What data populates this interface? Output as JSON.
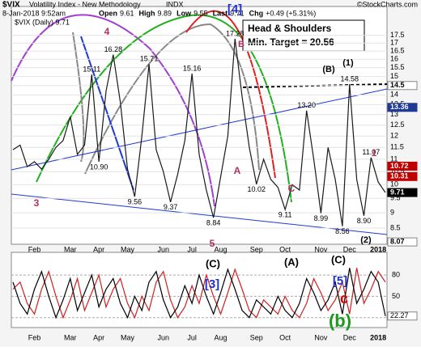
{
  "header": {
    "symbol": "$VIX",
    "name": "Volatility Index - New Methodology",
    "exchange": "INDX",
    "source": "©StockCharts.com",
    "date": "8-Jan-2018 9:52am",
    "quote": [
      {
        "label": "Open",
        "value": "9.61"
      },
      {
        "label": "High",
        "value": "9.89"
      },
      {
        "label": "Low",
        "value": "9.55"
      },
      {
        "label": "Last",
        "value": "9.71"
      },
      {
        "label": "Chg",
        "value": "+0.49 (+5.31%)"
      }
    ],
    "legend": "$VIX (Daily) 9.71"
  },
  "chart_data": [
    {
      "type": "line",
      "log_scale": true,
      "grid": true,
      "categories": [
        null,
        null,
        null,
        "Feb",
        null,
        null,
        null,
        null,
        "Mar",
        null,
        null,
        null,
        "Apr",
        null,
        null,
        null,
        "May",
        null,
        null,
        null,
        null,
        "Jun",
        null,
        null,
        null,
        "Jul",
        null,
        null,
        null,
        "Aug",
        null,
        null,
        null,
        null,
        "Sep",
        null,
        null,
        null,
        "Oct",
        null,
        null,
        null,
        null,
        "Nov",
        null,
        null,
        null,
        "Dec",
        null,
        null,
        null,
        "2018",
        null
      ],
      "series": [
        {
          "color": "#1a1a1a",
          "values": [
            11.4,
            11.6,
            10.7,
            10.9,
            10.6,
            11.0,
            11.5,
            11.8,
            12.9,
            11.2,
            11.6,
            15.11,
            10.9,
            14.2,
            16.28,
            13.6,
            10.6,
            9.56,
            12.0,
            15.71,
            11.4,
            10.5,
            9.37,
            10.4,
            11.8,
            15.16,
            11.2,
            9.8,
            8.84,
            10.3,
            12.0,
            17.28,
            13.9,
            11.5,
            10.02,
            11.0,
            10.2,
            9.9,
            9.11,
            10.0,
            9.8,
            13.2,
            11.0,
            8.99,
            11.5,
            10.2,
            8.56,
            14.58,
            10.2,
            8.9,
            11.07,
            10.1,
            9.71
          ],
          "value_labels": [
            null,
            null,
            null,
            null,
            null,
            null,
            null,
            null,
            null,
            null,
            null,
            "15.11",
            "10.90",
            null,
            "16.28",
            null,
            null,
            "9.56",
            null,
            "15.71",
            null,
            null,
            "9.37",
            null,
            null,
            "15.16",
            null,
            null,
            "8.84",
            null,
            null,
            "17.28",
            null,
            null,
            "10.02",
            null,
            null,
            null,
            "9.11",
            null,
            null,
            "13.20",
            null,
            "8.99",
            null,
            null,
            "8.56",
            "14.58",
            null,
            "8.90",
            "11.07",
            null,
            null
          ]
        }
      ],
      "ylim": [
        8.0,
        19.5
      ],
      "yticks": [
        8.5,
        9.0,
        9.5,
        10.0,
        10.5,
        11.0,
        11.5,
        12.0,
        12.5,
        13.0,
        13.5,
        14.0,
        14.5,
        15.0,
        15.5,
        16.0,
        16.5,
        17.0,
        17.5
      ],
      "right_labels": [
        {
          "value": 14.5,
          "color": "#ffffff"
        },
        {
          "value": 13.36,
          "color": "#1f3a93"
        },
        {
          "value": 10.72,
          "color": "#c00000"
        },
        {
          "value": 10.31,
          "color": "#c00000"
        },
        {
          "value": 9.71,
          "color": "#000000"
        },
        {
          "value": 8.07,
          "color": "#ffffff"
        }
      ],
      "annotations": [
        {
          "text": "[4]",
          "color": "#1f2fd0"
        },
        {
          "text": "B",
          "color": "#b03060"
        },
        {
          "text": "(1)",
          "color": "#000000"
        },
        {
          "text": "(B)",
          "color": "#000000"
        },
        {
          "text": "A",
          "color": "#b03060"
        },
        {
          "text": "C",
          "color": "#b03060"
        },
        {
          "text": "3",
          "color": "#b03060"
        },
        {
          "text": "4",
          "color": "#b03060"
        },
        {
          "text": "5",
          "color": "#b03060"
        },
        {
          "text": "1",
          "color": "#b03060"
        },
        {
          "text": "(2)",
          "color": "#000000"
        }
      ],
      "box_text": [
        "Head & Shoulders",
        "Min. Target = 20.56"
      ]
    },
    {
      "type": "line",
      "grid": true,
      "series": [
        {
          "color": "#000000",
          "values": [
            70,
            40,
            25,
            60,
            85,
            50,
            20,
            45,
            75,
            30,
            55,
            80,
            35,
            60,
            75,
            40,
            20,
            50,
            30,
            70,
            85,
            45,
            20,
            35,
            65,
            40,
            80,
            50,
            25,
            55,
            88,
            60,
            30,
            20,
            45,
            35,
            25,
            50,
            30,
            20,
            40,
            75,
            55,
            30,
            45,
            70,
            25,
            90,
            40,
            60,
            85,
            70,
            22.27
          ]
        },
        {
          "color": "#d02020",
          "values": [
            60,
            70,
            40,
            25,
            60,
            85,
            50,
            20,
            45,
            75,
            30,
            55,
            80,
            35,
            60,
            75,
            40,
            20,
            50,
            30,
            70,
            85,
            45,
            20,
            35,
            65,
            40,
            80,
            50,
            25,
            55,
            88,
            60,
            30,
            20,
            45,
            35,
            25,
            50,
            30,
            20,
            40,
            75,
            55,
            30,
            45,
            70,
            25,
            90,
            40,
            60,
            85,
            70
          ]
        }
      ],
      "ylim": [
        6,
        112
      ],
      "yticks": [
        20,
        50,
        80
      ],
      "last_label": 22.27,
      "annotations": [
        {
          "text": "(C)",
          "color": "#000000"
        },
        {
          "text": "(A)",
          "color": "#000000"
        },
        {
          "text": "(C)",
          "color": "#000000"
        },
        {
          "text": "[3]",
          "color": "#1f2fd0"
        },
        {
          "text": "[5]",
          "color": "#1f2fd0"
        },
        {
          "text": "c",
          "color": "#e00000"
        },
        {
          "text": "(b)",
          "color": "#1a9a1a"
        }
      ]
    }
  ]
}
